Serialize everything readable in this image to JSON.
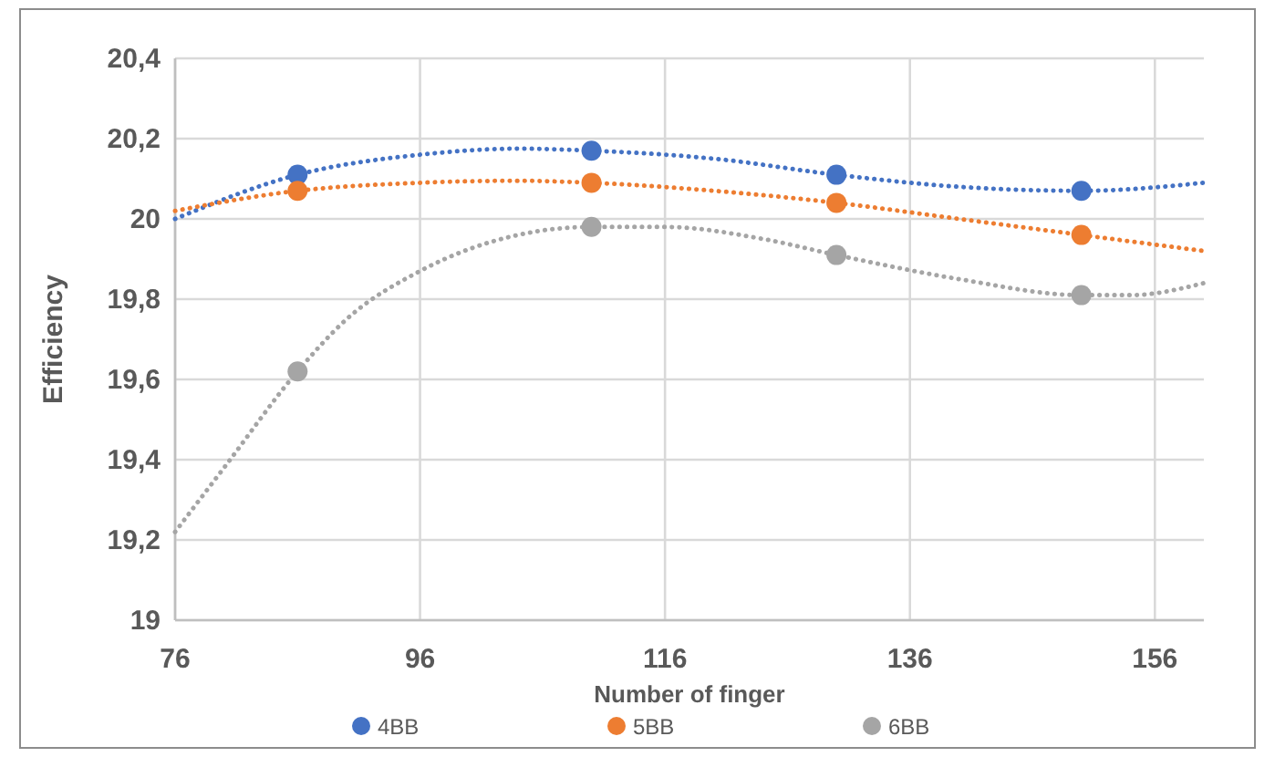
{
  "chart_data": {
    "type": "scatter",
    "xlabel": "Number of finger",
    "ylabel": "Efficiency",
    "xlim": [
      76,
      160
    ],
    "xticks": [
      76,
      96,
      116,
      136,
      156
    ],
    "ylim": [
      19,
      20.4
    ],
    "yticks": [
      {
        "value": 19,
        "label": "19"
      },
      {
        "value": 19.2,
        "label": "19,2"
      },
      {
        "value": 19.4,
        "label": "19,4"
      },
      {
        "value": 19.6,
        "label": "19,6"
      },
      {
        "value": 19.8,
        "label": "19,8"
      },
      {
        "value": 20,
        "label": "20"
      },
      {
        "value": 20.2,
        "label": "20,2"
      },
      {
        "value": 20.4,
        "label": "20,4"
      }
    ],
    "grid": true,
    "legend": "bottom",
    "marker": "circle",
    "x": [
      86,
      110,
      130,
      150
    ],
    "series": [
      {
        "name": "4BB",
        "color": "#4472c4",
        "values": [
          20.11,
          20.17,
          20.11,
          20.07
        ]
      },
      {
        "name": "5BB",
        "color": "#ed7d31",
        "values": [
          20.07,
          20.09,
          20.04,
          19.96
        ]
      },
      {
        "name": "6BB",
        "color": "#a5a5a5",
        "values": [
          19.62,
          19.98,
          19.91,
          19.81
        ]
      },
      {
        "type": "line",
        "marker": "none",
        "line_style": "dotted",
        "color": "#4472c4",
        "x": [
          76,
          86,
          96,
          104,
          110,
          120,
          130,
          140,
          150,
          160
        ],
        "values": [
          20.0,
          20.11,
          20.16,
          20.175,
          20.17,
          20.15,
          20.11,
          20.08,
          20.07,
          20.09
        ]
      },
      {
        "type": "line",
        "marker": "none",
        "line_style": "dotted",
        "color": "#ed7d31",
        "x": [
          76,
          86,
          96,
          104,
          110,
          120,
          130,
          140,
          150,
          160
        ],
        "values": [
          20.02,
          20.07,
          20.09,
          20.095,
          20.09,
          20.07,
          20.04,
          20.0,
          19.96,
          19.92
        ]
      },
      {
        "type": "line",
        "marker": "none",
        "line_style": "dotted",
        "color": "#a5a5a5",
        "x": [
          76,
          80,
          86,
          90,
          96,
          104,
          110,
          116,
          124,
          130,
          140,
          150,
          154,
          160
        ],
        "values": [
          19.22,
          19.38,
          19.62,
          19.75,
          19.87,
          19.96,
          19.98,
          19.98,
          19.95,
          19.91,
          19.85,
          19.81,
          19.81,
          19.84
        ]
      }
    ]
  }
}
